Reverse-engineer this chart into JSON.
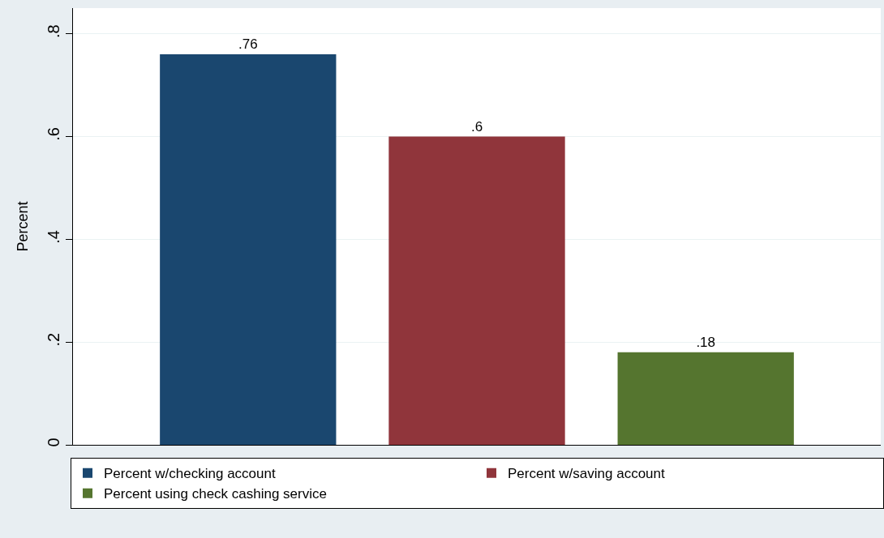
{
  "chart_data": {
    "type": "bar",
    "ylabel": "Percent",
    "categories": [
      null
    ],
    "series": [
      {
        "name": "Percent w/checking account",
        "color": "#1a476f",
        "values": [
          0.76
        ],
        "value_labels": [
          ".76"
        ]
      },
      {
        "name": "Percent w/saving account",
        "color": "#90353b",
        "values": [
          0.6
        ],
        "value_labels": [
          ".6"
        ]
      },
      {
        "name": "Percent using check cashing service",
        "color": "#55752f",
        "values": [
          0.18
        ],
        "value_labels": [
          ".18"
        ]
      }
    ],
    "ylim": [
      0,
      0.85
    ],
    "yticks": [
      {
        "value": 0,
        "label": "0"
      },
      {
        "value": 0.2,
        "label": ".2"
      },
      {
        "value": 0.4,
        "label": ".4"
      },
      {
        "value": 0.6,
        "label": ".6"
      },
      {
        "value": 0.8,
        "label": ".8"
      }
    ],
    "grid": "y",
    "legend": "bottom"
  }
}
